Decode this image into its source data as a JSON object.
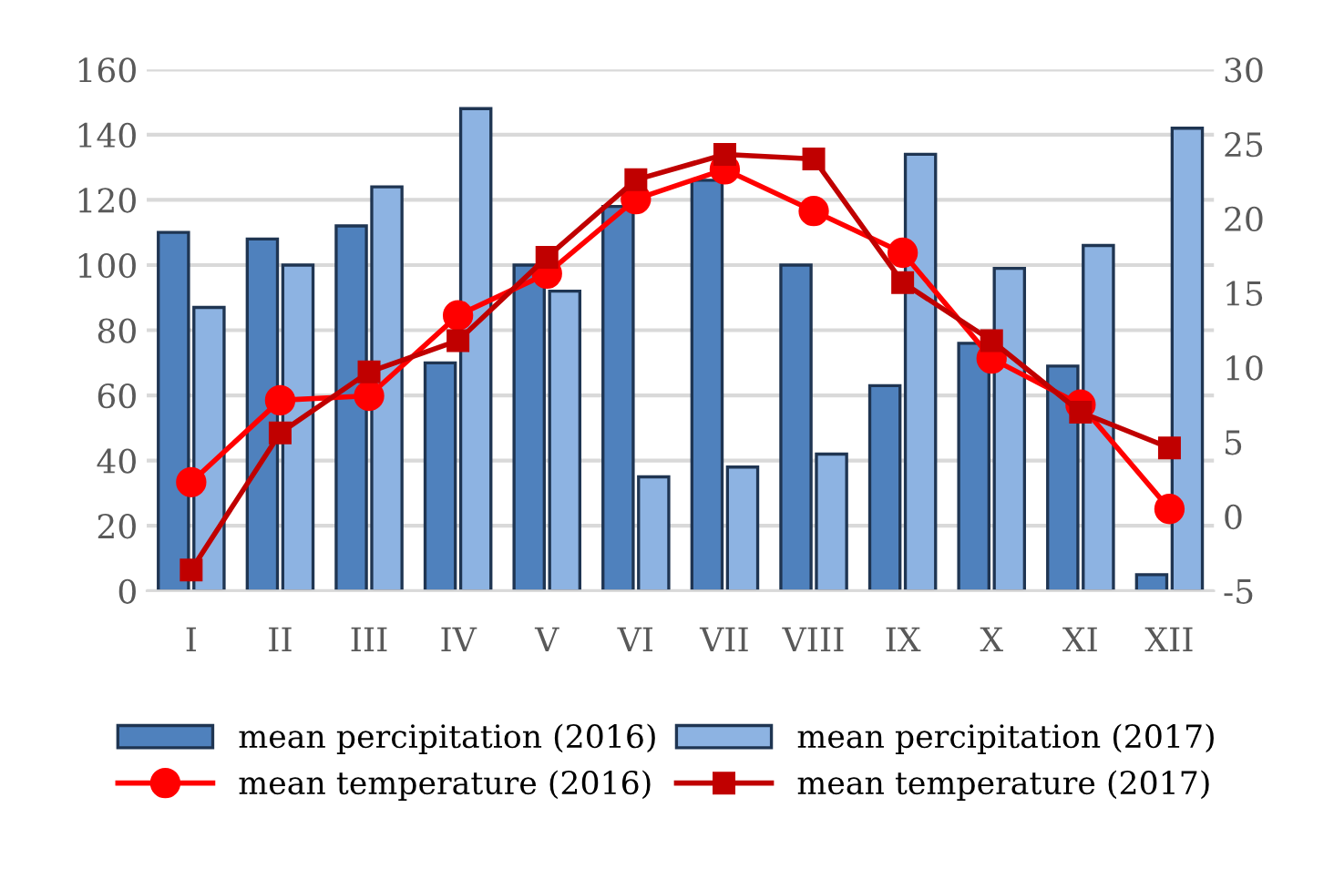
{
  "chart_data": {
    "type": "bar",
    "categories": [
      "I",
      "II",
      "III",
      "IV",
      "V",
      "VI",
      "VII",
      "VIII",
      "IX",
      "X",
      "XI",
      "XII"
    ],
    "series": [
      {
        "name": "mean percipitation (2016)",
        "color": "#4f81bd",
        "values": [
          110,
          108,
          112,
          70,
          100,
          118,
          126,
          100,
          63,
          76,
          69,
          5
        ]
      },
      {
        "name": "mean percipitation (2017)",
        "color": "#8db3e2",
        "values": [
          87,
          100,
          124,
          148,
          92,
          35,
          38,
          42,
          134,
          99,
          106,
          142
        ]
      },
      {
        "name": "mean temperature (2016)",
        "color": "#ff0000",
        "type": "line",
        "axis": "y2",
        "marker": "circle",
        "values": [
          2.3,
          7.8,
          8.1,
          13.5,
          16.3,
          21.3,
          23.3,
          20.5,
          17.7,
          10.6,
          7.5,
          0.5
        ]
      },
      {
        "name": "mean temperature (2017)",
        "color": "#c00000",
        "type": "line",
        "axis": "y2",
        "marker": "square",
        "values": [
          -3.6,
          5.6,
          9.7,
          11.8,
          17.4,
          22.6,
          24.3,
          24.0,
          15.7,
          11.8,
          7.0,
          4.6
        ]
      }
    ],
    "ylim": [
      0,
      160
    ],
    "yticks": [
      0,
      20,
      40,
      60,
      80,
      100,
      120,
      140,
      160
    ],
    "y2lim": [
      -5,
      30
    ],
    "y2ticks": [
      -5,
      0,
      5,
      10,
      15,
      20,
      25,
      30
    ],
    "grid": "y",
    "legend": "bottom"
  }
}
